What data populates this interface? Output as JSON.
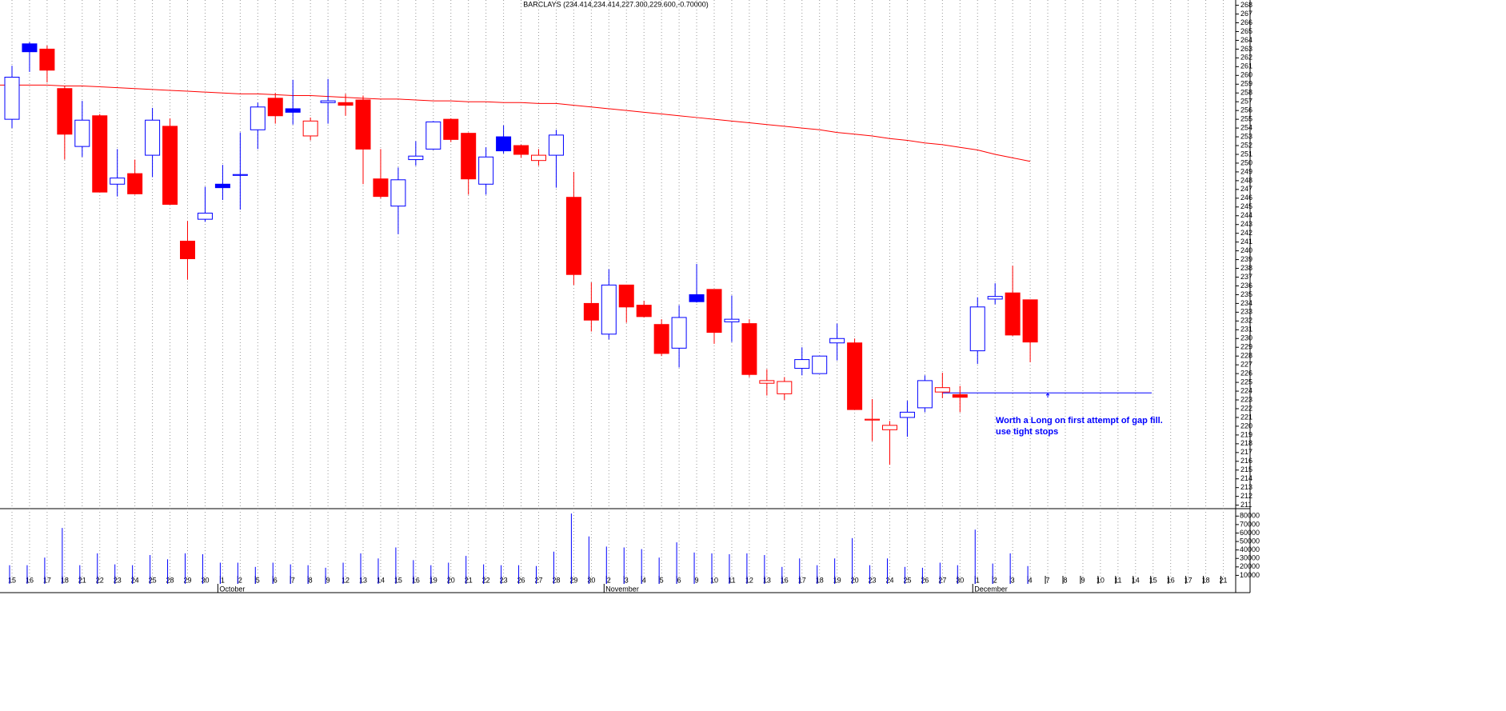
{
  "chart_data": {
    "type": "candlestick",
    "title": "BARCLAYS (234.414,234.414,227.300,229.600,-0.70000)",
    "categories": [
      "15",
      "16",
      "17",
      "18",
      "21",
      "22",
      "23",
      "24",
      "25",
      "28",
      "29",
      "30",
      "1",
      "2",
      "5",
      "6",
      "7",
      "8",
      "9",
      "12",
      "13",
      "14",
      "15",
      "16",
      "19",
      "20",
      "21",
      "22",
      "23",
      "26",
      "27",
      "28",
      "29",
      "30",
      "2",
      "3",
      "4",
      "5",
      "6",
      "9",
      "10",
      "11",
      "12",
      "13",
      "16",
      "17",
      "18",
      "19",
      "20",
      "23",
      "24",
      "25",
      "26",
      "27",
      "30",
      "1",
      "2",
      "3",
      "4",
      "7",
      "8",
      "9",
      "10",
      "11",
      "14",
      "15",
      "16",
      "17",
      "18",
      "21"
    ],
    "month_labels": [
      "October",
      "November",
      "December"
    ],
    "open": [
      255.0,
      263.6,
      263.0,
      258.5,
      251.9,
      255.4,
      247.6,
      248.8,
      250.9,
      254.2,
      241.1,
      243.6,
      247.6,
      248.6,
      253.8,
      257.4,
      256.2,
      253.1,
      256.9,
      256.9,
      257.2,
      248.2,
      245.1,
      250.4,
      251.6,
      255.0,
      253.4,
      247.6,
      253.0,
      252.0,
      250.3,
      250.9,
      246.1,
      234.0,
      230.5,
      236.1,
      233.8,
      231.6,
      228.9,
      235.0,
      235.6,
      231.9,
      231.7,
      224.9,
      223.7,
      226.6,
      226.0,
      229.5,
      229.5,
      220.7,
      219.6,
      221.0,
      222.1,
      223.9,
      223.6,
      228.6,
      234.5,
      235.2,
      234.414,
      null,
      null,
      null,
      null,
      null,
      null,
      null,
      null,
      null,
      null,
      null
    ],
    "high": [
      261.1,
      263.8,
      263.4,
      258.8,
      257.1,
      255.6,
      251.6,
      250.4,
      256.3,
      255.1,
      243.4,
      247.3,
      249.8,
      253.5,
      256.9,
      258.0,
      259.5,
      255.2,
      259.6,
      257.9,
      257.7,
      251.6,
      249.5,
      252.5,
      254.8,
      255.1,
      253.5,
      251.8,
      254.3,
      252.1,
      251.6,
      253.8,
      249.0,
      236.4,
      237.9,
      236.1,
      234.3,
      232.2,
      233.8,
      238.5,
      235.6,
      234.9,
      232.2,
      226.5,
      225.6,
      229.0,
      228.0,
      231.7,
      230.0,
      223.1,
      220.6,
      222.9,
      225.8,
      226.1,
      224.6,
      234.7,
      236.3,
      238.3,
      234.414,
      null,
      null,
      null,
      null,
      null,
      null,
      null,
      null,
      null,
      null,
      null
    ],
    "low": [
      254.0,
      260.4,
      259.2,
      250.4,
      250.7,
      246.7,
      246.2,
      246.4,
      248.4,
      245.3,
      236.7,
      243.3,
      245.8,
      244.7,
      251.6,
      254.5,
      254.4,
      252.6,
      254.5,
      255.4,
      247.6,
      246.0,
      241.9,
      249.7,
      251.5,
      252.4,
      246.4,
      246.4,
      251.1,
      250.6,
      249.7,
      247.2,
      236.1,
      230.8,
      229.9,
      231.8,
      232.4,
      228.0,
      226.7,
      234.1,
      229.4,
      229.6,
      225.6,
      223.5,
      223.0,
      225.8,
      226.0,
      227.5,
      221.9,
      218.3,
      215.6,
      218.8,
      221.6,
      223.2,
      221.6,
      227.1,
      233.9,
      230.3,
      227.3,
      null,
      null,
      null,
      null,
      null,
      null,
      null,
      null,
      null,
      null,
      null
    ],
    "close": [
      259.8,
      262.7,
      260.6,
      253.3,
      254.9,
      246.7,
      248.3,
      246.5,
      254.9,
      245.3,
      239.1,
      244.3,
      247.2,
      248.7,
      256.4,
      255.4,
      255.8,
      254.8,
      257.1,
      256.6,
      251.6,
      246.2,
      248.1,
      250.8,
      254.7,
      252.7,
      248.2,
      250.7,
      251.4,
      251.0,
      250.9,
      253.2,
      237.3,
      232.1,
      236.1,
      233.6,
      232.5,
      228.3,
      232.4,
      234.2,
      230.7,
      232.2,
      225.9,
      225.2,
      225.1,
      227.6,
      228.0,
      230.0,
      221.9,
      220.8,
      220.1,
      221.6,
      225.2,
      224.4,
      223.3,
      233.6,
      234.8,
      230.4,
      229.6,
      null,
      null,
      null,
      null,
      null,
      null,
      null,
      null,
      null,
      null,
      null
    ],
    "moving_average": {
      "color": "#ff0000",
      "values": [
        258.9,
        258.9,
        258.9,
        258.8,
        258.8,
        258.7,
        258.6,
        258.5,
        258.4,
        258.3,
        258.2,
        258.1,
        258.0,
        257.9,
        257.9,
        257.8,
        257.7,
        257.7,
        257.6,
        257.5,
        257.4,
        257.3,
        257.3,
        257.2,
        257.1,
        257.1,
        257.0,
        257.0,
        256.9,
        256.9,
        256.8,
        256.8,
        256.6,
        256.4,
        256.2,
        256.0,
        255.8,
        255.6,
        255.4,
        255.2,
        255.0,
        254.8,
        254.6,
        254.4,
        254.2,
        254.0,
        253.8,
        253.5,
        253.3,
        253.1,
        252.8,
        252.6,
        252.3,
        252.1,
        251.8,
        251.5,
        251.0,
        250.6,
        250.2,
        null,
        null,
        null,
        null,
        null,
        null,
        null,
        null,
        null,
        null,
        null
      ]
    },
    "up_color": "#0000ff",
    "down_color": "#ff0000",
    "ylim": [
      210.6,
      268.6
    ],
    "yticks": [
      211,
      212,
      213,
      214,
      215,
      216,
      217,
      218,
      219,
      220,
      221,
      222,
      223,
      224,
      225,
      226,
      227,
      228,
      229,
      230,
      231,
      232,
      233,
      234,
      235,
      236,
      237,
      238,
      239,
      240,
      241,
      242,
      243,
      244,
      245,
      246,
      247,
      248,
      249,
      250,
      251,
      252,
      253,
      254,
      255,
      256,
      257,
      258,
      259,
      260,
      261,
      262,
      263,
      264,
      265,
      266,
      267,
      268
    ],
    "trendline_value": 223.8,
    "annotations": [
      "Worth a Long on first attempt of gap fill.",
      "use tight stops"
    ],
    "volume": {
      "color": "#0000ff",
      "ylim": [
        0,
        85000
      ],
      "yticks": [
        10000,
        20000,
        30000,
        40000,
        50000,
        60000,
        70000,
        80000
      ],
      "values": [
        22000,
        22000,
        31000,
        66000,
        22000,
        36000,
        23000,
        22000,
        34000,
        29000,
        36000,
        35000,
        25000,
        25000,
        20000,
        25000,
        23000,
        22000,
        19000,
        25000,
        36000,
        30000,
        43000,
        28000,
        22000,
        25000,
        33000,
        23000,
        22000,
        22000,
        21000,
        38000,
        83000,
        56000,
        44000,
        43000,
        41000,
        31000,
        49000,
        37000,
        36000,
        35000,
        36000,
        34000,
        20000,
        30000,
        22000,
        30000,
        54000,
        22000,
        30000,
        20000,
        19000,
        25000,
        22000,
        64000,
        24000,
        36000,
        21000,
        null,
        null,
        null,
        null,
        null,
        null,
        null,
        null,
        null,
        null,
        null
      ]
    },
    "grid": true
  }
}
